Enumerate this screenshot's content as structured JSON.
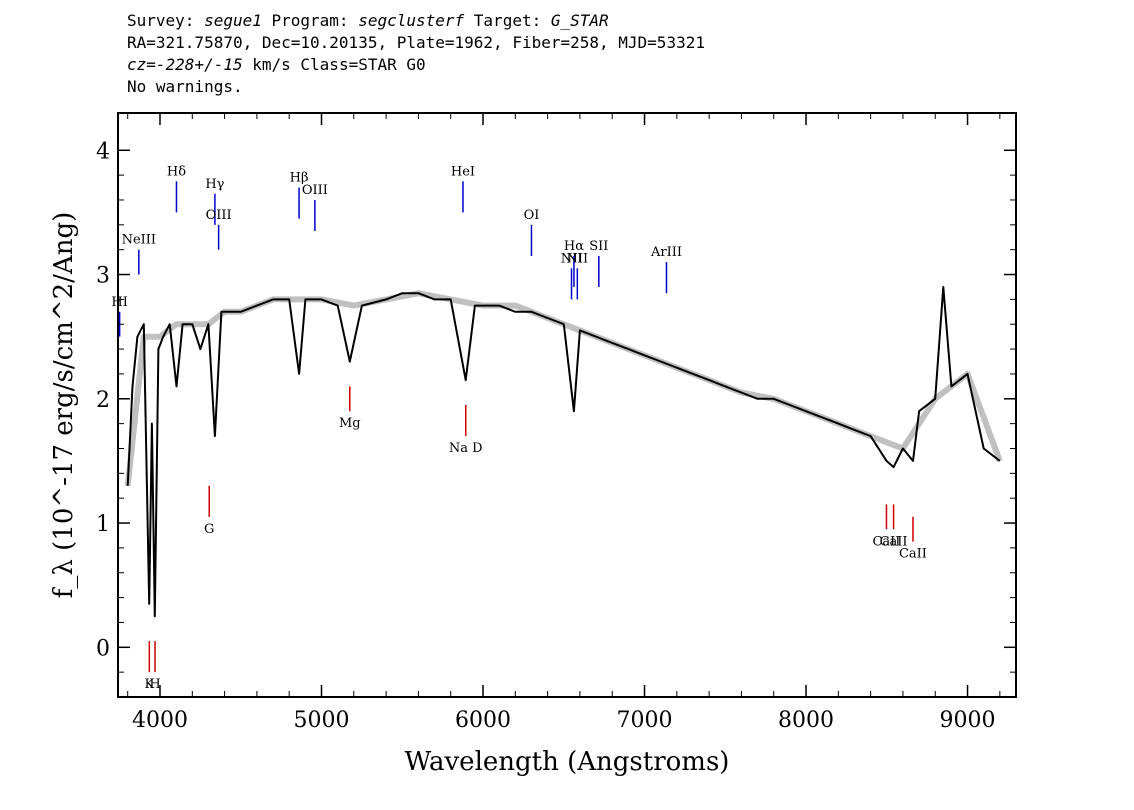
{
  "header": {
    "line1_prefix": "Survey: ",
    "survey": "segue1",
    "line1_mid1": " Program: ",
    "program": "segclusterf",
    "line1_mid2": " Target: ",
    "target": "G_STAR",
    "line2": "RA=321.75870, Dec=10.20135, Plate=1962, Fiber=258, MJD=53321",
    "cz_prefix": "cz=",
    "cz_value": "-228+/-15",
    "cz_suffix": " km/s Class=STAR G0",
    "line4": "No warnings."
  },
  "chart_data": {
    "type": "line",
    "xlabel": "Wavelength (Angstroms)",
    "ylabel": "f_λ (10^-17 erg/s/cm^2/Ang)",
    "xlim": [
      3740,
      9300
    ],
    "ylim": [
      -0.4,
      4.3
    ],
    "xticks": [
      4000,
      5000,
      6000,
      7000,
      8000,
      9000
    ],
    "yticks": [
      0,
      1,
      2,
      3,
      4
    ],
    "series": [
      {
        "role": "smoothed flux",
        "color": "#000000",
        "x": [
          3800,
          3830,
          3860,
          3900,
          3933,
          3950,
          3968,
          3990,
          4020,
          4060,
          4102,
          4140,
          4200,
          4250,
          4300,
          4340,
          4380,
          4450,
          4500,
          4600,
          4700,
          4800,
          4861,
          4900,
          5000,
          5100,
          5175,
          5250,
          5400,
          5500,
          5600,
          5700,
          5800,
          5893,
          5950,
          6100,
          6200,
          6300,
          6400,
          6500,
          6563,
          6600,
          6700,
          6800,
          6900,
          7000,
          7100,
          7200,
          7300,
          7400,
          7500,
          7600,
          7700,
          7800,
          7900,
          8000,
          8100,
          8200,
          8300,
          8400,
          8498,
          8542,
          8600,
          8662,
          8700,
          8800,
          8850,
          8900,
          9000,
          9100,
          9200
        ],
        "y": [
          1.3,
          2.1,
          2.5,
          2.6,
          0.35,
          1.8,
          0.25,
          2.4,
          2.5,
          2.6,
          2.1,
          2.6,
          2.6,
          2.4,
          2.6,
          1.7,
          2.7,
          2.7,
          2.7,
          2.75,
          2.8,
          2.8,
          2.2,
          2.8,
          2.8,
          2.75,
          2.3,
          2.75,
          2.8,
          2.85,
          2.85,
          2.8,
          2.8,
          2.15,
          2.75,
          2.75,
          2.7,
          2.7,
          2.65,
          2.6,
          1.9,
          2.55,
          2.5,
          2.45,
          2.4,
          2.35,
          2.3,
          2.25,
          2.2,
          2.15,
          2.1,
          2.05,
          2.0,
          2.0,
          1.95,
          1.9,
          1.85,
          1.8,
          1.75,
          1.7,
          1.5,
          1.45,
          1.6,
          1.5,
          1.9,
          2.0,
          2.9,
          2.1,
          2.2,
          1.6,
          1.5
        ]
      },
      {
        "role": "raw flux",
        "color": "#c0c0c0",
        "x": [
          3800,
          3900,
          4000,
          4100,
          4200,
          4300,
          4400,
          4500,
          4600,
          4700,
          4800,
          4900,
          5000,
          5200,
          5400,
          5600,
          5800,
          6000,
          6200,
          6400,
          6600,
          6800,
          7000,
          7200,
          7400,
          7600,
          7800,
          8000,
          8200,
          8400,
          8600,
          8800,
          9000,
          9200
        ],
        "y": [
          1.3,
          2.5,
          2.5,
          2.6,
          2.6,
          2.6,
          2.7,
          2.7,
          2.75,
          2.8,
          2.8,
          2.8,
          2.8,
          2.75,
          2.8,
          2.85,
          2.8,
          2.75,
          2.75,
          2.65,
          2.55,
          2.45,
          2.35,
          2.25,
          2.15,
          2.05,
          2.0,
          1.9,
          1.8,
          1.7,
          1.6,
          2.0,
          2.2,
          1.5
        ]
      }
    ],
    "emission_lines": [
      {
        "label": "Hδ",
        "x": 4102,
        "y0": 3.5,
        "y1": 3.75
      },
      {
        "label": "Hγ",
        "x": 4340,
        "y0": 3.4,
        "y1": 3.65
      },
      {
        "label": "OIII",
        "x": 4363,
        "y0": 3.2,
        "y1": 3.4
      },
      {
        "label": "NeIII",
        "x": 3869,
        "y0": 3.0,
        "y1": 3.2
      },
      {
        "label": "HI",
        "x": 3750,
        "y0": 2.5,
        "y1": 2.7
      },
      {
        "label": "Hβ",
        "x": 4861,
        "y0": 3.45,
        "y1": 3.7
      },
      {
        "label": "OIII",
        "x": 4959,
        "y0": 3.35,
        "y1": 3.6
      },
      {
        "label": "HeI",
        "x": 5876,
        "y0": 3.5,
        "y1": 3.75
      },
      {
        "label": "OI",
        "x": 6300,
        "y0": 3.15,
        "y1": 3.4
      },
      {
        "label": "NII",
        "x": 6548,
        "y0": 2.8,
        "y1": 3.05
      },
      {
        "label": "Hα",
        "x": 6563,
        "y0": 2.9,
        "y1": 3.15
      },
      {
        "label": "NII",
        "x": 6584,
        "y0": 2.8,
        "y1": 3.05
      },
      {
        "label": "SII",
        "x": 6717,
        "y0": 2.9,
        "y1": 3.15
      },
      {
        "label": "ArIII",
        "x": 7136,
        "y0": 2.85,
        "y1": 3.1
      }
    ],
    "absorption_lines": [
      {
        "label": "K",
        "x": 3934,
        "y0": -0.2,
        "y1": 0.05
      },
      {
        "label": "H",
        "x": 3969,
        "y0": -0.2,
        "y1": 0.05
      },
      {
        "label": "G",
        "x": 4305,
        "y0": 1.05,
        "y1": 1.3
      },
      {
        "label": "Mg",
        "x": 5175,
        "y0": 1.9,
        "y1": 2.1
      },
      {
        "label": "Na D",
        "x": 5893,
        "y0": 1.7,
        "y1": 1.95
      },
      {
        "label": "CaII",
        "x": 8498,
        "y0": 0.95,
        "y1": 1.15
      },
      {
        "label": "CaII",
        "x": 8542,
        "y0": 0.95,
        "y1": 1.15
      },
      {
        "label": "CaII",
        "x": 8662,
        "y0": 0.85,
        "y1": 1.05
      }
    ],
    "emission_color": "#0000cc",
    "absorption_color": "#cc0000",
    "grid": false,
    "legend": "none"
  }
}
